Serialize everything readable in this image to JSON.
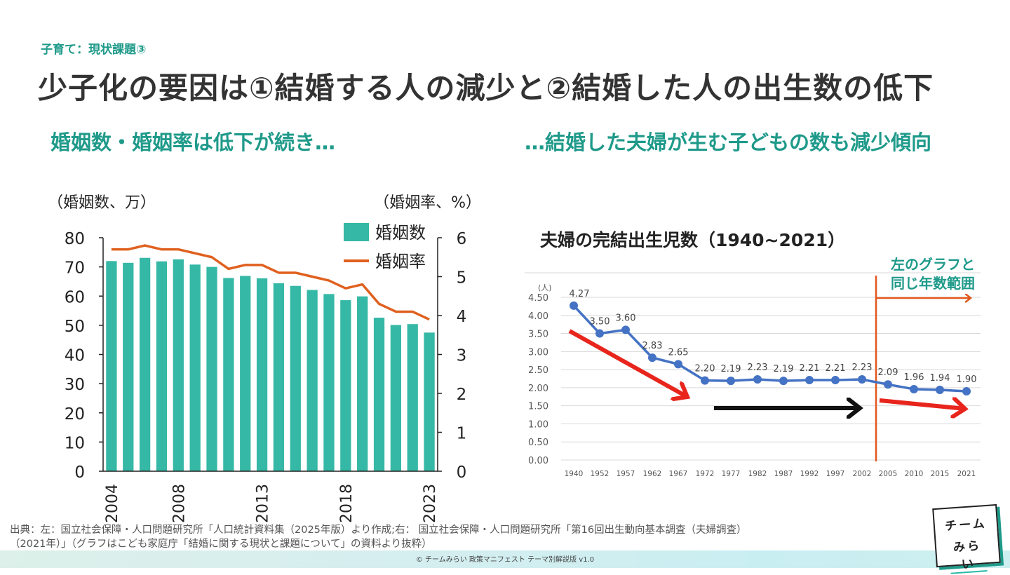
{
  "kicker": "子育て：現状課題③",
  "title": "少子化の要因は①結婚する人の減少と②結婚した人の出生数の低下",
  "left_heading": "婚姻数・婚姻率は低下が続き…",
  "right_heading": "…結婚した夫婦が生む子どもの数も減少傾向",
  "source_note": {
    "line1": "出典：左：国立社会保障・人口問題研究所「人口統計資料集（2025年版）より作成;右： 国立社会保障・人口問題研究所「第16回出生動向基本調査（夫婦調査）",
    "line2": "（2021年）」（グラフはこども家庭庁「結婚に関する現状と課題について」の資料より抜粋）"
  },
  "footer": "© チームみらい 政策マニフェスト テーマ別解説版 v1.0",
  "logo": {
    "line1": "チーム",
    "line2": "みらい"
  },
  "colors": {
    "accent": "#1f9a8a",
    "bar": "#35b8a5",
    "rate_line": "#e0601f",
    "births_line": "#4472c4",
    "arrow_red": "#e8251c",
    "divider": "#e2571e"
  },
  "chart_data": [
    {
      "type": "bar",
      "left_axis_label": "（婚姻数、万）",
      "right_axis_label": "（婚姻率、%）",
      "x": [
        2004,
        2005,
        2006,
        2007,
        2008,
        2009,
        2010,
        2011,
        2012,
        2013,
        2014,
        2015,
        2016,
        2017,
        2018,
        2019,
        2020,
        2021,
        2022,
        2023
      ],
      "x_tick_labels": [
        "2004",
        "2008",
        "2013",
        "2018",
        "2023"
      ],
      "series": [
        {
          "name": "婚姻数",
          "type": "bar",
          "axis": "left",
          "values": [
            72.0,
            71.4,
            73.1,
            71.9,
            72.6,
            70.8,
            70.0,
            66.2,
            66.9,
            66.1,
            64.4,
            63.5,
            62.1,
            60.7,
            58.6,
            59.9,
            52.6,
            50.1,
            50.4,
            47.5
          ]
        },
        {
          "name": "婚姻率",
          "type": "line",
          "axis": "right",
          "values": [
            5.7,
            5.7,
            5.8,
            5.7,
            5.7,
            5.6,
            5.5,
            5.2,
            5.3,
            5.3,
            5.1,
            5.1,
            5.0,
            4.9,
            4.7,
            4.8,
            4.3,
            4.1,
            4.1,
            3.9
          ]
        }
      ],
      "left_ylim": [
        0,
        80
      ],
      "left_ticks": [
        "0",
        "10",
        "20",
        "30",
        "40",
        "50",
        "60",
        "70",
        "80"
      ],
      "right_ylim": [
        0,
        6
      ],
      "right_ticks": [
        "0",
        "1",
        "2",
        "3",
        "4",
        "5",
        "6"
      ],
      "legend": "top-right"
    },
    {
      "type": "line",
      "title": "夫婦の完結出生児数（1940~2021）",
      "ylabel": "(人)",
      "categories": [
        "1940",
        "1952",
        "1957",
        "1962",
        "1967",
        "1972",
        "1977",
        "1982",
        "1987",
        "1992",
        "1997",
        "2002",
        "2005",
        "2010",
        "2015",
        "2021"
      ],
      "values": [
        4.27,
        3.5,
        3.6,
        2.83,
        2.65,
        2.2,
        2.19,
        2.23,
        2.19,
        2.21,
        2.21,
        2.23,
        2.09,
        1.96,
        1.94,
        1.9
      ],
      "value_labels": [
        "4.27",
        "3.50",
        "3.60",
        "2.83",
        "2.65",
        "2.20",
        "2.19",
        "2.23",
        "2.19",
        "2.21",
        "2.21",
        "2.23",
        "2.09",
        "1.96",
        "1.94",
        "1.90"
      ],
      "ylim": [
        0,
        4.5
      ],
      "y_ticks": [
        "0.00",
        "0.50",
        "1.00",
        "1.50",
        "2.00",
        "2.50",
        "3.00",
        "3.50",
        "4.00",
        "4.50"
      ],
      "grid": true,
      "annotation": {
        "line1": "左のグラフと",
        "line2": "同じ年数範囲"
      }
    }
  ]
}
